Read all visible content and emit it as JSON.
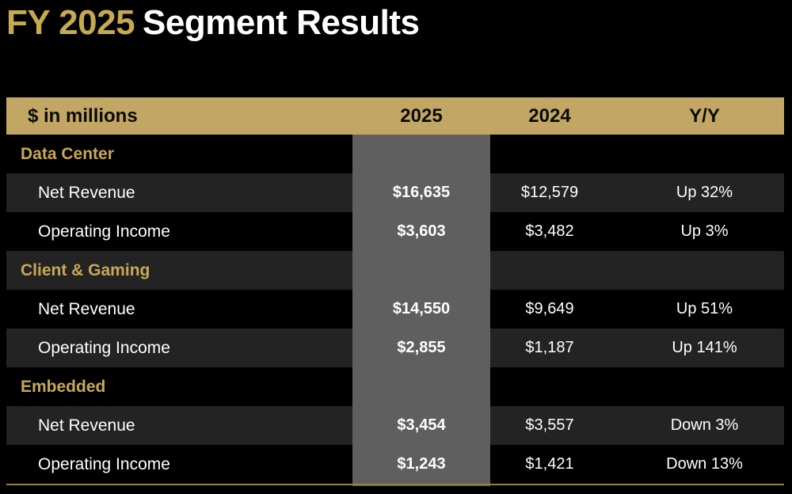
{
  "title": {
    "fy": "FY 2025",
    "rest": "Segment Results"
  },
  "colors": {
    "background": "#000000",
    "gold_header_bg": "#C2A663",
    "gold_title": "#C7A94F",
    "gold_section_text": "#C8A858",
    "gray_highlight_column": "#5F5F5F",
    "row_shade": "#232323",
    "bottom_rule_gold": "#97803F",
    "text_white": "#FFFFFF",
    "text_black": "#0A0A0A"
  },
  "table": {
    "unit_label": "$ in millions",
    "columns": [
      "2025",
      "2024",
      "Y/Y"
    ],
    "sections": [
      {
        "name": "Data Center",
        "rows": [
          {
            "label": "Net Revenue",
            "v2025": "$16,635",
            "v2024": "$12,579",
            "yy": "Up 32%"
          },
          {
            "label": "Operating Income",
            "v2025": "$3,603",
            "v2024": "$3,482",
            "yy": "Up 3%"
          }
        ]
      },
      {
        "name": "Client & Gaming",
        "rows": [
          {
            "label": "Net Revenue",
            "v2025": "$14,550",
            "v2024": "$9,649",
            "yy": "Up 51%"
          },
          {
            "label": "Operating Income",
            "v2025": "$2,855",
            "v2024": "$1,187",
            "yy": "Up 141%"
          }
        ]
      },
      {
        "name": "Embedded",
        "rows": [
          {
            "label": "Net Revenue",
            "v2025": "$3,454",
            "v2024": "$3,557",
            "yy": "Down 3%"
          },
          {
            "label": "Operating Income",
            "v2025": "$1,243",
            "v2024": "$1,421",
            "yy": "Down 13%"
          }
        ]
      }
    ]
  }
}
